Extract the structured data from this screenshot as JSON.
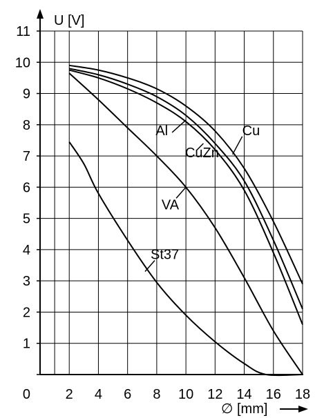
{
  "chart_data": {
    "type": "line",
    "title": "",
    "xlabel": "∅ [mm]",
    "ylabel": "U [V]",
    "xlim": [
      0,
      18
    ],
    "ylim": [
      0,
      11
    ],
    "x_ticks": [
      2,
      4,
      6,
      8,
      10,
      12,
      14,
      16,
      18
    ],
    "y_ticks": [
      0,
      1,
      2,
      3,
      4,
      5,
      6,
      7,
      8,
      9,
      10,
      11
    ],
    "x_tick_labels": [
      "2",
      "4",
      "6",
      "8",
      "10",
      "12",
      "14",
      "16",
      "18"
    ],
    "y_tick_labels": [
      "0",
      "1",
      "2",
      "3",
      "4",
      "5",
      "6",
      "7",
      "8",
      "9",
      "10",
      "11"
    ],
    "x_origin_label": "0",
    "grid": true,
    "series": [
      {
        "name": "Cu",
        "x": [
          2,
          4,
          6,
          8,
          10,
          12,
          14,
          16,
          18
        ],
        "values": [
          9.9,
          9.75,
          9.5,
          9.15,
          8.6,
          7.8,
          6.6,
          4.9,
          2.9
        ],
        "label": {
          "text": "Cu",
          "at": [
            13.2,
            7.05
          ]
        }
      },
      {
        "name": "CuZn",
        "x": [
          2,
          4,
          6,
          8,
          10,
          12,
          14,
          16,
          18
        ],
        "values": [
          9.8,
          9.6,
          9.3,
          8.9,
          8.3,
          7.4,
          6.2,
          4.3,
          2.1
        ],
        "label": {
          "text": "CuZn",
          "at": [
            11.2,
            7.4
          ]
        }
      },
      {
        "name": "Al",
        "x": [
          2,
          4,
          6,
          8,
          10,
          12,
          14,
          16,
          18
        ],
        "values": [
          9.75,
          9.5,
          9.15,
          8.7,
          8.1,
          7.2,
          5.9,
          3.9,
          1.6
        ],
        "label": {
          "text": "Al",
          "at": [
            10.0,
            8.15
          ]
        }
      },
      {
        "name": "VA",
        "x": [
          2,
          4,
          6,
          8,
          10,
          12,
          14,
          16,
          18
        ],
        "values": [
          9.65,
          8.8,
          7.9,
          7.0,
          6.0,
          4.7,
          3.1,
          1.4,
          0.0
        ],
        "label": {
          "text": "VA",
          "at": [
            10.0,
            6.0
          ]
        }
      },
      {
        "name": "St37",
        "x": [
          2,
          3,
          4,
          6,
          8,
          10,
          12,
          14,
          15.5,
          18
        ],
        "values": [
          7.45,
          6.75,
          5.8,
          4.3,
          2.95,
          1.9,
          1.05,
          0.35,
          0.0,
          0.0
        ],
        "label": {
          "text": "St37",
          "at": [
            7.2,
            3.3
          ]
        }
      }
    ]
  }
}
